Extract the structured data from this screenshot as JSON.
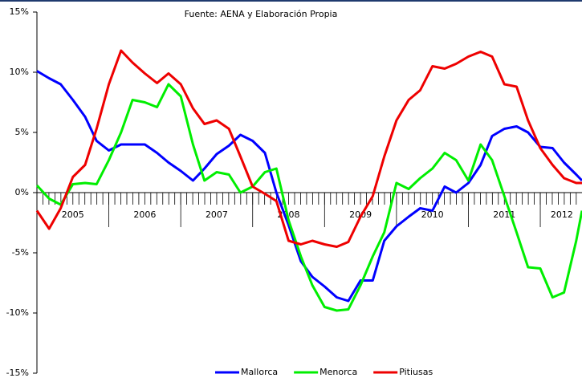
{
  "chart_data": {
    "type": "line",
    "subtitle": "Fuente: AENA y Elaboración Propia",
    "x": [
      2005.0,
      2005.17,
      2005.33,
      2005.5,
      2005.67,
      2005.83,
      2006.0,
      2006.17,
      2006.33,
      2006.5,
      2006.67,
      2006.83,
      2007.0,
      2007.17,
      2007.33,
      2007.5,
      2007.67,
      2007.83,
      2008.0,
      2008.17,
      2008.33,
      2008.5,
      2008.67,
      2008.83,
      2009.0,
      2009.17,
      2009.33,
      2009.5,
      2009.67,
      2009.83,
      2010.0,
      2010.17,
      2010.33,
      2010.5,
      2010.67,
      2010.83,
      2011.0,
      2011.17,
      2011.33,
      2011.5,
      2011.67,
      2011.83,
      2012.0,
      2012.17,
      2012.33,
      2012.5,
      2012.58
    ],
    "series": [
      {
        "name": "Mallorca",
        "color": "#0000ff",
        "values": [
          10.1,
          9.5,
          9.0,
          7.7,
          6.3,
          4.3,
          3.5,
          4.0,
          4.0,
          4.0,
          3.3,
          2.5,
          1.8,
          1.0,
          2.0,
          3.2,
          3.9,
          4.8,
          4.3,
          3.3,
          0.0,
          -2.7,
          -5.7,
          -7.0,
          -7.8,
          -8.7,
          -9.0,
          -7.3,
          -7.3,
          -4.0,
          -2.8,
          -2.0,
          -1.3,
          -1.5,
          0.5,
          0.0,
          0.8,
          2.3,
          4.7,
          5.3,
          5.5,
          5.0,
          3.8,
          3.7,
          2.5,
          1.5,
          1.0
        ]
      },
      {
        "name": "Menorca",
        "color": "#00ee00",
        "values": [
          0.6,
          -0.5,
          -1.0,
          0.7,
          0.8,
          0.7,
          2.7,
          5.0,
          7.7,
          7.5,
          7.1,
          9.0,
          8.0,
          4.0,
          1.0,
          1.7,
          1.5,
          0.0,
          0.5,
          1.7,
          2.0,
          -2.3,
          -5.3,
          -7.7,
          -9.5,
          -9.8,
          -9.7,
          -7.7,
          -5.3,
          -3.3,
          0.8,
          0.3,
          1.2,
          2.0,
          3.3,
          2.7,
          1.0,
          4.0,
          2.7,
          -0.3,
          -3.3,
          -6.2,
          -6.3,
          -8.7,
          -8.3,
          -4.0,
          -1.5
        ]
      },
      {
        "name": "Pitiusas",
        "color": "#ee0000",
        "values": [
          -1.5,
          -3.0,
          -1.3,
          1.3,
          2.3,
          5.3,
          9.0,
          11.8,
          10.8,
          9.9,
          9.1,
          9.9,
          9.0,
          7.0,
          5.7,
          6.0,
          5.3,
          3.0,
          0.5,
          -0.1,
          -0.7,
          -4.0,
          -4.3,
          -4.0,
          -4.3,
          -4.5,
          -4.1,
          -2.0,
          -0.3,
          3.0,
          6.0,
          7.7,
          8.5,
          10.5,
          10.3,
          10.7,
          11.3,
          11.7,
          11.3,
          9.0,
          8.8,
          6.0,
          3.7,
          2.3,
          1.2,
          0.8,
          0.8
        ]
      }
    ],
    "xlim": [
      2005,
      2012.58
    ],
    "xticks": [
      {
        "value": 2005.5,
        "label": "2005"
      },
      {
        "value": 2006.5,
        "label": "2006"
      },
      {
        "value": 2007.5,
        "label": "2007"
      },
      {
        "value": 2008.5,
        "label": "2008"
      },
      {
        "value": 2009.5,
        "label": "2009"
      },
      {
        "value": 2010.5,
        "label": "2010"
      },
      {
        "value": 2011.5,
        "label": "2011"
      },
      {
        "value": 2012.3,
        "label": "2012"
      }
    ],
    "year_separators": [
      2006,
      2007,
      2008,
      2009,
      2010,
      2011,
      2012
    ],
    "ylim": [
      -15,
      15
    ],
    "yticks": [
      {
        "value": 15,
        "label": "15%"
      },
      {
        "value": 10,
        "label": "10%"
      },
      {
        "value": 5,
        "label": "5%"
      },
      {
        "value": 0,
        "label": "0%"
      },
      {
        "value": -5,
        "label": "-5%"
      },
      {
        "value": -10,
        "label": "-10%"
      },
      {
        "value": -15,
        "label": "-15%"
      }
    ],
    "legend": "bottom"
  }
}
